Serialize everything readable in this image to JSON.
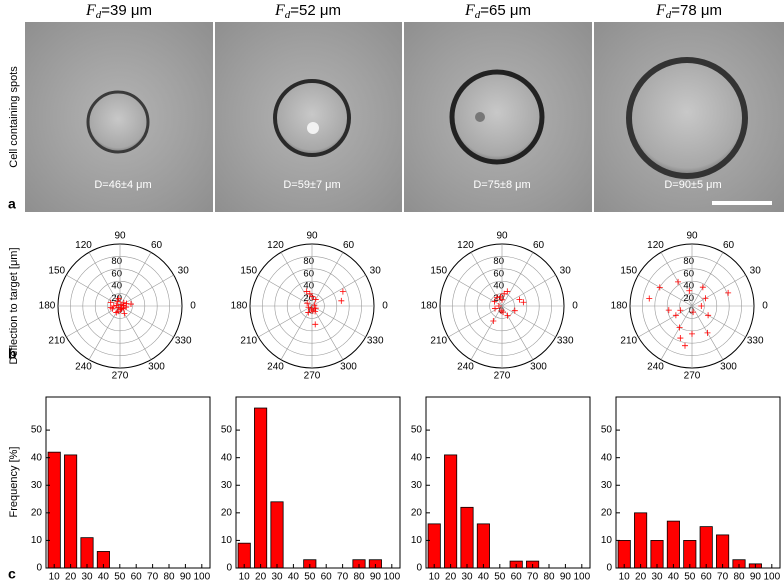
{
  "images": [
    {
      "title": {
        "symbol": "F",
        "subscript": "d",
        "text": "=39 μm"
      },
      "diameter_label": "D=46±4 μm"
    },
    {
      "title": {
        "symbol": "F",
        "subscript": "d",
        "text": "=52 μm"
      },
      "diameter_label": "D=59±7 μm"
    },
    {
      "title": {
        "symbol": "F",
        "subscript": "d",
        "text": "=65 μm"
      },
      "diameter_label": "D=75±8 μm"
    },
    {
      "title": {
        "symbol": "F",
        "subscript": "d",
        "text": "=78 μm"
      },
      "diameter_label": "D=90±5 μm"
    }
  ],
  "row_label": "Cell containing spots",
  "panel_labels": [
    "a",
    "b",
    "c"
  ],
  "chart_data": [
    {
      "type": "polar",
      "ylabel": "Deflection to target [μm]",
      "color": "#ff0000",
      "rlim": [
        0,
        100
      ],
      "rticks": [
        0,
        20,
        40,
        60,
        80
      ],
      "thetaticks": [
        0,
        30,
        60,
        90,
        120,
        150,
        180,
        210,
        240,
        270,
        300,
        330
      ],
      "r": [
        5,
        8,
        12,
        6,
        10,
        15,
        4,
        9,
        14,
        7,
        11,
        3,
        16,
        13,
        6,
        10,
        18,
        8,
        12,
        5
      ],
      "theta": [
        10,
        40,
        100,
        170,
        180,
        190,
        220,
        250,
        300,
        330,
        20,
        60,
        160,
        200,
        280,
        350,
        10,
        120,
        240,
        300
      ]
    },
    {
      "type": "polar",
      "color": "#ff0000",
      "rlim": [
        0,
        100
      ],
      "rticks": [
        0,
        20,
        40,
        60,
        80
      ],
      "thetaticks": [
        0,
        30,
        60,
        90,
        120,
        150,
        180,
        210,
        240,
        270,
        300,
        330
      ],
      "r": [
        5,
        8,
        10,
        12,
        6,
        15,
        20,
        25,
        48,
        55,
        9,
        7,
        30,
        4,
        12
      ],
      "theta": [
        260,
        280,
        300,
        240,
        200,
        90,
        100,
        110,
        10,
        25,
        150,
        330,
        280,
        20,
        60
      ]
    },
    {
      "type": "polar",
      "color": "#ff0000",
      "rlim": [
        0,
        100
      ],
      "rticks": [
        0,
        20,
        40,
        60,
        80
      ],
      "thetaticks": [
        0,
        30,
        60,
        90,
        120,
        150,
        180,
        210,
        240,
        270,
        300,
        330
      ],
      "r": [
        10,
        15,
        20,
        25,
        30,
        12,
        8,
        18,
        22,
        35,
        5,
        14,
        28,
        10,
        16
      ],
      "theta": [
        90,
        100,
        80,
        70,
        20,
        200,
        260,
        300,
        340,
        10,
        180,
        150,
        240,
        280,
        120
      ]
    },
    {
      "type": "polar",
      "color": "#ff0000",
      "rlim": [
        0,
        100
      ],
      "rticks": [
        0,
        20,
        40,
        60,
        80
      ],
      "thetaticks": [
        0,
        30,
        60,
        90,
        120,
        150,
        180,
        210,
        240,
        270,
        300,
        330
      ],
      "r": [
        15,
        25,
        35,
        45,
        60,
        70,
        20,
        30,
        40,
        55,
        65,
        10,
        50,
        30,
        25,
        45,
        38,
        62
      ],
      "theta": [
        0,
        30,
        60,
        120,
        150,
        170,
        200,
        210,
        240,
        250,
        260,
        280,
        300,
        330,
        100,
        270,
        190,
        20
      ]
    },
    {
      "type": "bar",
      "ylabel": "Frequency [%]",
      "color": "#ff0000",
      "x": [
        10,
        20,
        30,
        40,
        50,
        60,
        70,
        80,
        90
      ],
      "values": [
        42,
        41,
        11,
        6,
        0,
        0,
        0,
        0,
        0
      ],
      "xlim": [
        5,
        105
      ],
      "ylim": [
        0,
        62
      ],
      "xticks": [
        10,
        20,
        30,
        40,
        50,
        60,
        70,
        80,
        90,
        100
      ],
      "yticks": [
        0,
        10,
        20,
        30,
        40,
        50
      ]
    },
    {
      "type": "bar",
      "color": "#ff0000",
      "x": [
        10,
        20,
        30,
        40,
        50,
        60,
        70,
        80,
        90
      ],
      "values": [
        9,
        58,
        24,
        0,
        3,
        0,
        0,
        3,
        3
      ],
      "xlim": [
        5,
        105
      ],
      "ylim": [
        0,
        62
      ],
      "xticks": [
        10,
        20,
        30,
        40,
        50,
        60,
        70,
        80,
        90,
        100
      ],
      "yticks": [
        0,
        10,
        20,
        30,
        40,
        50
      ]
    },
    {
      "type": "bar",
      "color": "#ff0000",
      "x": [
        10,
        20,
        30,
        40,
        50,
        60,
        70,
        80,
        90
      ],
      "values": [
        16,
        41,
        22,
        16,
        0,
        2.5,
        2.5,
        0,
        0
      ],
      "xlim": [
        5,
        105
      ],
      "ylim": [
        0,
        62
      ],
      "xticks": [
        10,
        20,
        30,
        40,
        50,
        60,
        70,
        80,
        90,
        100
      ],
      "yticks": [
        0,
        10,
        20,
        30,
        40,
        50
      ]
    },
    {
      "type": "bar",
      "color": "#ff0000",
      "x": [
        10,
        20,
        30,
        40,
        50,
        60,
        70,
        80,
        90
      ],
      "values": [
        10,
        20,
        10,
        17,
        10,
        15,
        12,
        3,
        1.5
      ],
      "xlim": [
        5,
        105
      ],
      "ylim": [
        0,
        62
      ],
      "xticks": [
        10,
        20,
        30,
        40,
        50,
        60,
        70,
        80,
        90,
        100
      ],
      "yticks": [
        0,
        10,
        20,
        30,
        40,
        50
      ]
    }
  ]
}
